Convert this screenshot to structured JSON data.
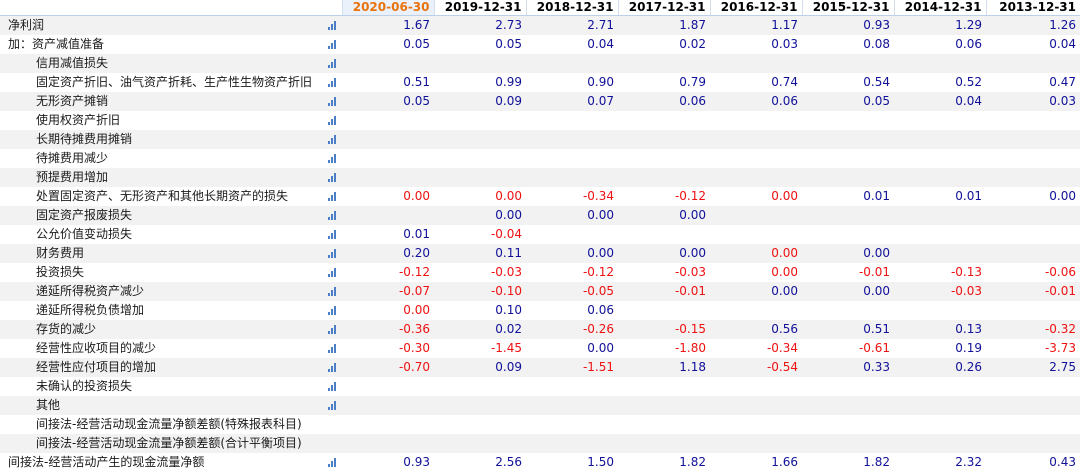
{
  "table": {
    "columns": [
      "2020-06-30",
      "2019-12-31",
      "2018-12-31",
      "2017-12-31",
      "2016-12-31",
      "2015-12-31",
      "2014-12-31",
      "2013-12-31"
    ],
    "active_column": 0,
    "chart_icon": "bar-chart-icon",
    "colors": {
      "positive": "#101099",
      "negative": "#ee1111",
      "active_header": "#e8730c"
    },
    "rows": [
      {
        "label": "净利润",
        "indent": false,
        "values": [
          "1.67",
          "2.73",
          "2.71",
          "1.87",
          "1.17",
          "0.93",
          "1.29",
          "1.26"
        ]
      },
      {
        "label": "加：资产减值准备",
        "indent": false,
        "values": [
          "0.05",
          "0.05",
          "0.04",
          "0.02",
          "0.03",
          "0.08",
          "0.06",
          "0.04"
        ]
      },
      {
        "label": "信用减值损失",
        "indent": true,
        "values": [
          "",
          "",
          "",
          "",
          "",
          "",
          "",
          ""
        ]
      },
      {
        "label": "固定资产折旧、油气资产折耗、生产性生物资产折旧",
        "indent": true,
        "values": [
          "0.51",
          "0.99",
          "0.90",
          "0.79",
          "0.74",
          "0.54",
          "0.52",
          "0.47"
        ]
      },
      {
        "label": "无形资产摊销",
        "indent": true,
        "values": [
          "0.05",
          "0.09",
          "0.07",
          "0.06",
          "0.06",
          "0.05",
          "0.04",
          "0.03"
        ]
      },
      {
        "label": "使用权资产折旧",
        "indent": true,
        "values": [
          "",
          "",
          "",
          "",
          "",
          "",
          "",
          ""
        ]
      },
      {
        "label": "长期待摊费用摊销",
        "indent": true,
        "values": [
          "",
          "",
          "",
          "",
          "",
          "",
          "",
          ""
        ]
      },
      {
        "label": "待摊费用减少",
        "indent": true,
        "values": [
          "",
          "",
          "",
          "",
          "",
          "",
          "",
          ""
        ]
      },
      {
        "label": "预提费用增加",
        "indent": true,
        "values": [
          "",
          "",
          "",
          "",
          "",
          "",
          "",
          ""
        ]
      },
      {
        "label": "处置固定资产、无形资产和其他长期资产的损失",
        "indent": true,
        "values": [
          "0.00",
          "0.00",
          "-0.34",
          "-0.12",
          "0.00",
          "0.01",
          "0.01",
          "0.00"
        ],
        "neg_zero_cols": [
          0,
          1,
          4
        ]
      },
      {
        "label": "固定资产报废损失",
        "indent": true,
        "values": [
          "",
          "0.00",
          "0.00",
          "0.00",
          "",
          "",
          "",
          ""
        ]
      },
      {
        "label": "公允价值变动损失",
        "indent": true,
        "values": [
          "0.01",
          "-0.04",
          "",
          "",
          "",
          "",
          "",
          ""
        ]
      },
      {
        "label": "财务费用",
        "indent": true,
        "values": [
          "0.20",
          "0.11",
          "0.00",
          "0.00",
          "0.00",
          "0.00",
          "",
          ""
        ],
        "neg_zero_cols": [
          4
        ]
      },
      {
        "label": "投资损失",
        "indent": true,
        "values": [
          "-0.12",
          "-0.03",
          "-0.12",
          "-0.03",
          "0.00",
          "-0.01",
          "-0.13",
          "-0.06"
        ],
        "neg_zero_cols": [
          4
        ]
      },
      {
        "label": "递延所得税资产减少",
        "indent": true,
        "values": [
          "-0.07",
          "-0.10",
          "-0.05",
          "-0.01",
          "0.00",
          "0.00",
          "-0.03",
          "-0.01"
        ]
      },
      {
        "label": "递延所得税负债增加",
        "indent": true,
        "values": [
          "0.00",
          "0.10",
          "0.06",
          "",
          "",
          "",
          "",
          ""
        ],
        "neg_zero_cols": [
          0
        ]
      },
      {
        "label": "存货的减少",
        "indent": true,
        "values": [
          "-0.36",
          "0.02",
          "-0.26",
          "-0.15",
          "0.56",
          "0.51",
          "0.13",
          "-0.32"
        ]
      },
      {
        "label": "经营性应收项目的减少",
        "indent": true,
        "values": [
          "-0.30",
          "-1.45",
          "0.00",
          "-1.80",
          "-0.34",
          "-0.61",
          "0.19",
          "-3.73"
        ]
      },
      {
        "label": "经营性应付项目的增加",
        "indent": true,
        "values": [
          "-0.70",
          "0.09",
          "-1.51",
          "1.18",
          "-0.54",
          "0.33",
          "0.26",
          "2.75"
        ]
      },
      {
        "label": "未确认的投资损失",
        "indent": true,
        "values": [
          "",
          "",
          "",
          "",
          "",
          "",
          "",
          ""
        ]
      },
      {
        "label": "其他",
        "indent": true,
        "values": [
          "",
          "",
          "",
          "",
          "",
          "",
          "",
          ""
        ]
      },
      {
        "label": "间接法-经营活动现金流量净额差额(特殊报表科目)",
        "indent": true,
        "noicon": true,
        "values": [
          "",
          "",
          "",
          "",
          "",
          "",
          "",
          ""
        ]
      },
      {
        "label": "间接法-经营活动现金流量净额差额(合计平衡项目)",
        "indent": true,
        "noicon": true,
        "values": [
          "",
          "",
          "",
          "",
          "",
          "",
          "",
          ""
        ]
      },
      {
        "label": "间接法-经营活动产生的现金流量净额",
        "indent": false,
        "values": [
          "0.93",
          "2.56",
          "1.50",
          "1.82",
          "1.66",
          "1.82",
          "2.32",
          "0.43"
        ]
      }
    ]
  }
}
